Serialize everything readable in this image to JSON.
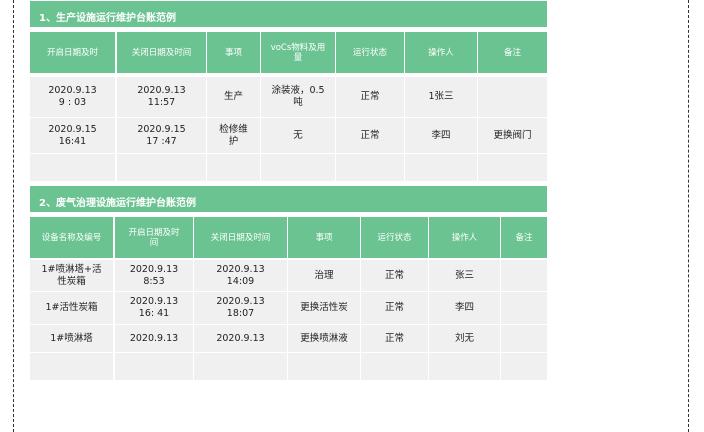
{
  "colors": {
    "accent": "#6bc391",
    "cell_bg": "#f0f0f0"
  },
  "tables": [
    {
      "title": "1、生产设施运行维护台账范例",
      "headers": [
        "开启日期及时",
        "关闭日期及时间",
        "事项",
        "voCs物料及用\n量",
        "运行状态",
        "操作人",
        "备注"
      ],
      "rows": [
        [
          "2020.9.13\n9 : 03",
          "2020.9.13\n11:57",
          "生产",
          "涂装液，0.5\n吨",
          "正常",
          "1张三",
          ""
        ],
        [
          "2020.9.15\n16:41",
          "2020.9.15\n17 :47",
          "检修维\n护",
          "无",
          "正常",
          "李四",
          "更换阀门"
        ],
        [
          "",
          "",
          "",
          "",
          "",
          "",
          ""
        ]
      ]
    },
    {
      "title": "2、废气治理设施运行维护台账范例",
      "headers": [
        "设备名称及编号",
        "开启日期及时\n间",
        "关闭日期及时间",
        "事项",
        "运行状态",
        "操作人",
        "备注"
      ],
      "rows": [
        [
          "1#喷淋塔+活\n性炭箱",
          "2020.9.13\n8:53",
          "2020.9.13\n14:09",
          "治理",
          "正常",
          "张三",
          ""
        ],
        [
          "1#活性炭箱",
          "2020.9.13\n16: 41",
          "2020.9.13\n18:07",
          "更换活性炭",
          "正常",
          "李四",
          ""
        ],
        [
          "1#喷淋塔",
          "2020.9.13",
          "2020.9.13",
          "更换喷淋液",
          "正常",
          "刘无",
          ""
        ],
        [
          "",
          "",
          "",
          "",
          "",
          "",
          ""
        ]
      ]
    }
  ]
}
